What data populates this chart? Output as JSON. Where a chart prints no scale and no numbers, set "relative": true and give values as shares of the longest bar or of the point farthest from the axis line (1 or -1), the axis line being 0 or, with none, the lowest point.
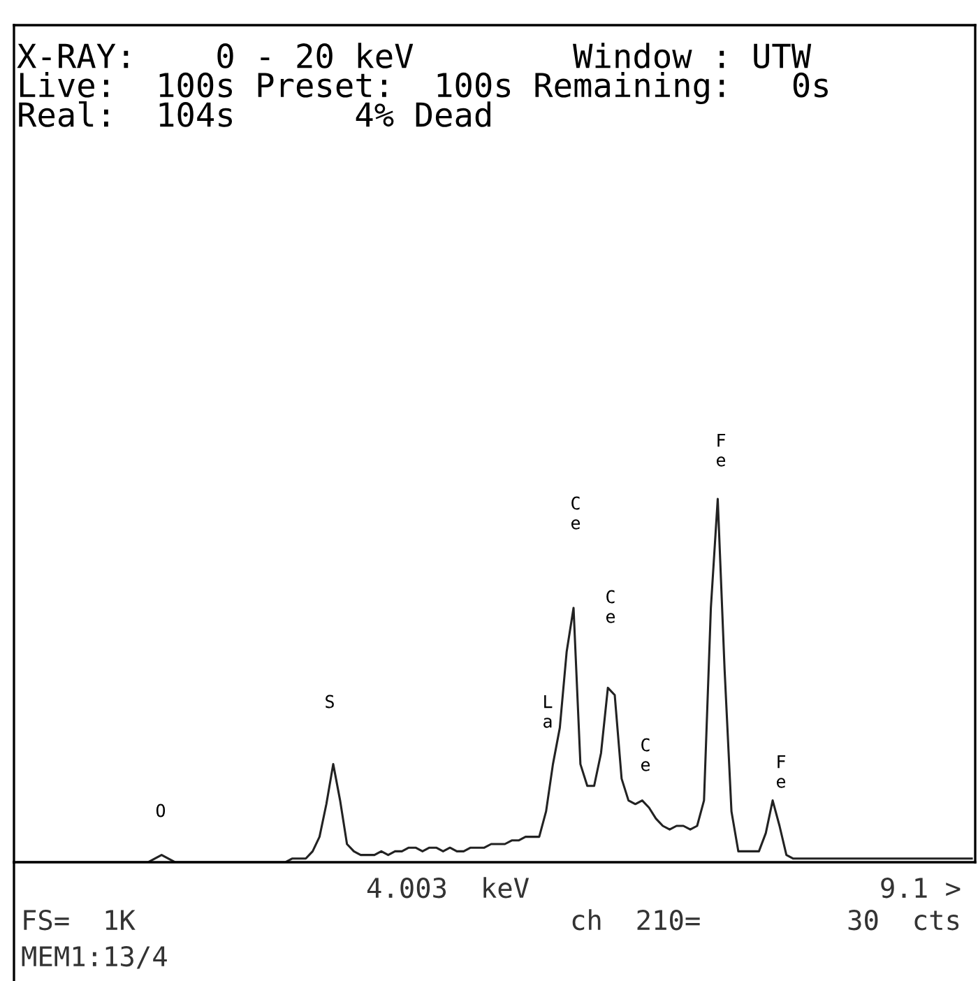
{
  "chart_data": {
    "type": "line",
    "relative": true,
    "categories": [
      null,
      null,
      null,
      null,
      null,
      null,
      null,
      null,
      null,
      null,
      null,
      null,
      null,
      null,
      null,
      null,
      null,
      null,
      null,
      null,
      null,
      null,
      null,
      null,
      null,
      null,
      null,
      null,
      null,
      null,
      null,
      null,
      null,
      null,
      null,
      null,
      null,
      null,
      null,
      null,
      null,
      null,
      null,
      null,
      null,
      null,
      null,
      null,
      null,
      null,
      null,
      null,
      null,
      null,
      null,
      null,
      null,
      null,
      null,
      null,
      null,
      null,
      null,
      null,
      null,
      null,
      null,
      null,
      null,
      null,
      null,
      null,
      null,
      null,
      null,
      null,
      null,
      null,
      null,
      null,
      null,
      null,
      null,
      null,
      null,
      null,
      null,
      null,
      null,
      null,
      null,
      null,
      null,
      null,
      null,
      null,
      null,
      null,
      null,
      null,
      null,
      null,
      null,
      null,
      null,
      null,
      null,
      null,
      null,
      null,
      null,
      null,
      null,
      null,
      null,
      null,
      null,
      null,
      null,
      null,
      null,
      null,
      null,
      null,
      null,
      null,
      null,
      null,
      null,
      null,
      null,
      null,
      null,
      null,
      null,
      null,
      null,
      null,
      null,
      null
    ],
    "series": [
      {
        "color": "#222222",
        "values": [
          0,
          0,
          0,
          0,
          0,
          0,
          0,
          0,
          0,
          0,
          0,
          0,
          0,
          0,
          0,
          0,
          0,
          0,
          0,
          0,
          0.01,
          0.02,
          0.01,
          0,
          0,
          0,
          0,
          0,
          0,
          0,
          0,
          0,
          0,
          0,
          0,
          0,
          0,
          0,
          0,
          0,
          0.01,
          0.01,
          0.01,
          0.03,
          0.07,
          0.16,
          0.27,
          0.17,
          0.05,
          0.03,
          0.02,
          0.02,
          0.02,
          0.03,
          0.02,
          0.03,
          0.03,
          0.04,
          0.04,
          0.03,
          0.04,
          0.04,
          0.03,
          0.04,
          0.03,
          0.03,
          0.04,
          0.04,
          0.04,
          0.05,
          0.05,
          0.05,
          0.06,
          0.06,
          0.07,
          0.07,
          0.07,
          0.14,
          0.27,
          0.37,
          0.58,
          0.7,
          0.27,
          0.21,
          0.21,
          0.3,
          0.48,
          0.46,
          0.23,
          0.17,
          0.16,
          0.17,
          0.15,
          0.12,
          0.1,
          0.09,
          0.1,
          0.1,
          0.09,
          0.1,
          0.17,
          0.7,
          1,
          0.53,
          0.14,
          0.03,
          0.03,
          0.03,
          0.03,
          0.08,
          0.17,
          0.1,
          0.02,
          0.01,
          0.01,
          0.01,
          0.01,
          0.01,
          0.01,
          0.01,
          0.01,
          0.01,
          0.01,
          0.01,
          0.01,
          0.01,
          0.01,
          0.01,
          0.01,
          0.01,
          0.01,
          0.01,
          0.01,
          0.01,
          0.01,
          0.01,
          0.01,
          0.01,
          0.01,
          0.01
        ]
      }
    ],
    "annotations": [
      "X-RAY:    0 - 20 keV        Window : UTW",
      "Live:  100s Preset:  100s Remaining:   0s",
      "Real:  104s      4% Dead",
      "O",
      "S",
      "La",
      "Ce",
      "Ce",
      "Ce",
      "Fe",
      "Fe",
      "4.003  keV",
      "9.1 >",
      "FS=  1K",
      "ch  210=",
      "30  cts",
      "MEM1:13/4"
    ],
    "grid": false,
    "legend": false
  }
}
